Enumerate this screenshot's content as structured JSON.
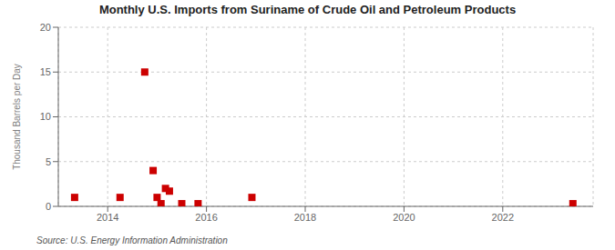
{
  "chart_data": {
    "type": "scatter",
    "title": "Monthly U.S. Imports from Suriname of Crude Oil and Petroleum Products",
    "y_label": "Thousand Barrels per Day",
    "annotations": [
      "Source: U.S. Energy Information Administration"
    ],
    "x": [
      2013.33,
      2014.25,
      2014.75,
      2014.92,
      2015.0,
      2015.08,
      2015.17,
      2015.25,
      2015.5,
      2015.83,
      2016.92,
      2023.42
    ],
    "values": [
      1.0,
      1.0,
      15.0,
      4.0,
      1.0,
      0.3,
      2.0,
      1.7,
      0.3,
      0.3,
      1.0,
      0.3
    ],
    "color": "#cc0000",
    "marker": "square",
    "xlim": [
      2013.0,
      2023.83
    ],
    "xticks": [
      2014,
      2016,
      2018,
      2020,
      2022
    ],
    "ylim": [
      0,
      20
    ],
    "yticks": [
      0,
      5,
      10,
      15,
      20
    ],
    "grid": true
  }
}
